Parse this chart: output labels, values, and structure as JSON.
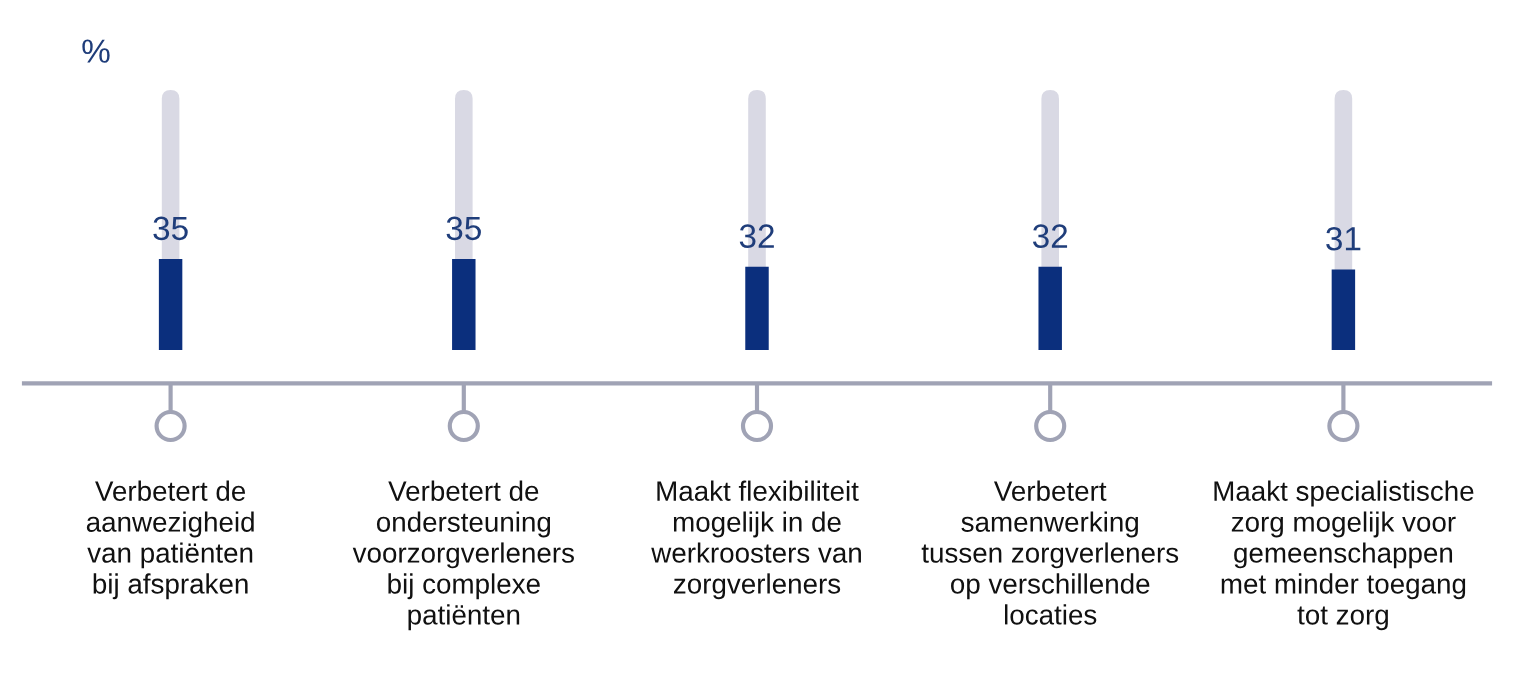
{
  "chart_data": {
    "type": "bar",
    "ylabel": "%",
    "categories": [
      "Verbetert de\naanwezigheid\nvan patiënten\nbij afspraken",
      "Verbetert de\nondersteuning\nvoorzorgverleners\nbij complexe\npatiënten",
      "Maakt flexibiliteit\nmogelijk in de\nwerkroosters van\nzorgverleners",
      "Verbetert\nsamenwerking\ntussen zorgverleners\nop verschillende\nlocaties",
      "Maakt specialistische\nzorg mogelijk voor\ngemeenschappen\nmet minder toegang\ntot zorg"
    ],
    "values": [
      35,
      35,
      32,
      32,
      31
    ],
    "color": "#0b2f7d",
    "ylim": [
      0,
      100
    ],
    "data_labels": true,
    "tick_labels": "x",
    "grid": false,
    "legend": false
  }
}
